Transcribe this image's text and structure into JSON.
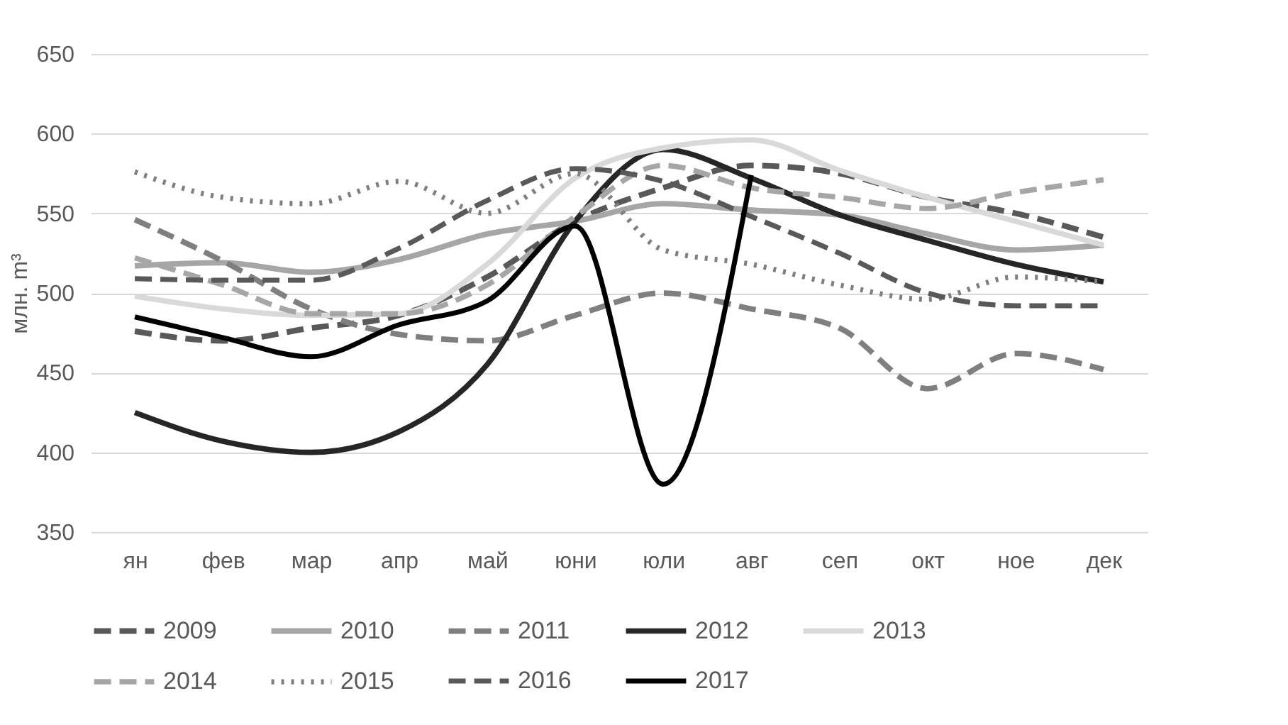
{
  "chart_data": {
    "type": "line",
    "ylabel": "млн. m³",
    "categories": [
      "ян",
      "фев",
      "мар",
      "апр",
      "май",
      "юни",
      "юли",
      "авг",
      "сеп",
      "окт",
      "ное",
      "дек"
    ],
    "ylim": [
      350,
      650
    ],
    "yticks": [
      350,
      400,
      450,
      500,
      550,
      600,
      650
    ],
    "grid": "y",
    "legend": "bottom",
    "series": [
      {
        "name": "2009",
        "color": "#595959",
        "line_style": "dashed",
        "values": [
          476,
          470,
          478,
          486,
          510,
          545,
          566,
          580,
          575,
          560,
          550,
          535
        ]
      },
      {
        "name": "2010",
        "color": "#a6a6a6",
        "line_style": "solid",
        "values": [
          517,
          519,
          513,
          521,
          537,
          545,
          556,
          552,
          549,
          537,
          527,
          530
        ]
      },
      {
        "name": "2011",
        "color": "#7f7f7f",
        "line_style": "dashed",
        "values": [
          546,
          520,
          490,
          474,
          470,
          486,
          500,
          490,
          478,
          440,
          462,
          452
        ]
      },
      {
        "name": "2012",
        "color": "#262626",
        "line_style": "solid",
        "values": [
          425,
          407,
          400,
          413,
          455,
          545,
          590,
          572,
          549,
          533,
          518,
          507
        ]
      },
      {
        "name": "2013",
        "color": "#d9d9d9",
        "line_style": "solid",
        "values": [
          498,
          490,
          486,
          487,
          518,
          572,
          591,
          596,
          577,
          560,
          545,
          530
        ]
      },
      {
        "name": "2014",
        "color": "#a6a6a6",
        "line_style": "dashed",
        "values": [
          522,
          505,
          487,
          487,
          505,
          548,
          580,
          566,
          560,
          553,
          563,
          571
        ]
      },
      {
        "name": "2015",
        "color": "#7f7f7f",
        "line_style": "dotted",
        "values": [
          576,
          560,
          556,
          570,
          550,
          575,
          527,
          518,
          505,
          496,
          510,
          507
        ]
      },
      {
        "name": "2016",
        "color": "#595959",
        "line_style": "dashed",
        "values": [
          509,
          508,
          508,
          528,
          558,
          578,
          570,
          548,
          525,
          500,
          492,
          492
        ]
      },
      {
        "name": "2017",
        "color": "#000000",
        "line_style": "solid",
        "values": [
          485,
          472,
          460,
          480,
          495,
          542,
          380,
          574,
          null,
          null,
          null,
          null
        ]
      }
    ]
  }
}
